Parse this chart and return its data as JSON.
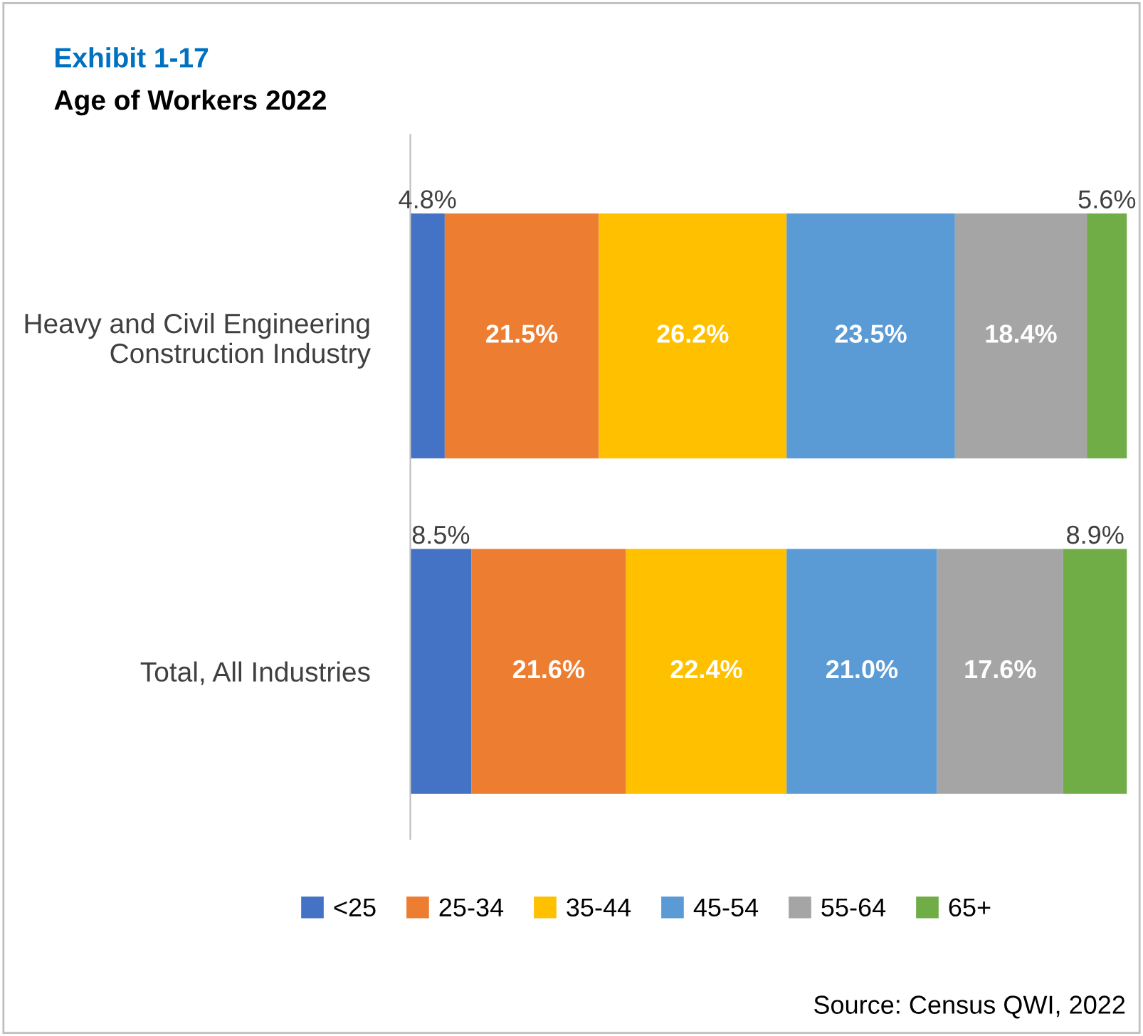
{
  "chart_data": {
    "type": "bar",
    "orientation": "horizontal",
    "stacked": true,
    "title": "Exhibit 1-17",
    "subtitle": "Age of Workers 2022",
    "categories": [
      "Heavy and Civil Engineering\nConstruction Industry",
      "Total, All Industries"
    ],
    "series": [
      {
        "name": "<25",
        "color": "#4472c4",
        "values": [
          4.8,
          8.5
        ],
        "value_labels": [
          "4.8%",
          "8.5%"
        ]
      },
      {
        "name": "25-34",
        "color": "#ed7d31",
        "values": [
          21.5,
          21.6
        ],
        "value_labels": [
          "21.5%",
          "21.6%"
        ]
      },
      {
        "name": "35-44",
        "color": "#ffc000",
        "values": [
          26.2,
          22.4
        ],
        "value_labels": [
          "26.2%",
          "22.4%"
        ]
      },
      {
        "name": "45-54",
        "color": "#5b9bd5",
        "values": [
          23.5,
          21.0
        ],
        "value_labels": [
          "23.5%",
          "21.0%"
        ]
      },
      {
        "name": "55-64",
        "color": "#a5a5a5",
        "values": [
          18.4,
          17.6
        ],
        "value_labels": [
          "18.4%",
          "17.6%"
        ]
      },
      {
        "name": "65+",
        "color": "#70ad47",
        "values": [
          5.6,
          8.9
        ],
        "value_labels": [
          "5.6%",
          "8.9%"
        ]
      }
    ],
    "legend": "bottom",
    "grid": false,
    "annotations": [
      "Source: Census QWI, 2022"
    ]
  }
}
